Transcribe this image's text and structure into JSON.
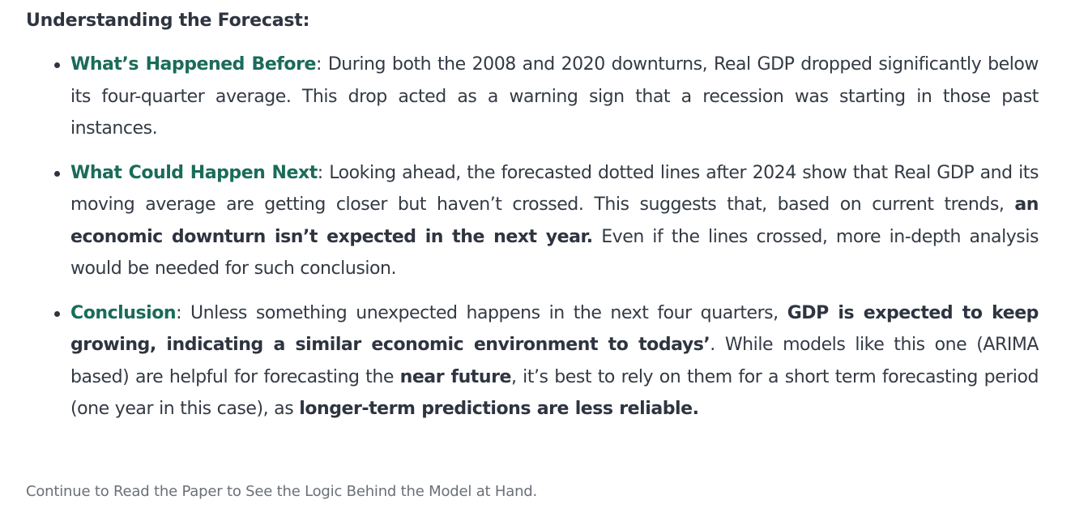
{
  "heading": "Understanding the Forecast:",
  "bullets": [
    {
      "term": "What’s Happened Before",
      "sep": ": ",
      "text": "During both the 2008 and 2020 downturns, Real GDP dropped significantly below its four-quarter average. This drop acted as a warning sign that a recession was starting in those past instances."
    },
    {
      "term": "What Could Happen Next",
      "sep": ": ",
      "text_a": "Looking ahead, the forecasted dotted lines after 2024 show that Real GDP and its moving average are getting closer but haven’t crossed. This suggests that, based on current trends, ",
      "bold_a": "an economic downturn isn’t expected in the next year.",
      "text_b": " Even if the lines crossed, more in-depth analysis would be needed for such conclusion."
    },
    {
      "term": "Conclusion",
      "sep": ": ",
      "text_a": "Unless something unexpected happens in the next four quarters, ",
      "bold_a": "GDP is expected to keep growing, indicating a similar economic environment to todays’",
      "text_b": ". While models like this one (ARIMA based) are helpful for forecasting the ",
      "bold_b": "near future",
      "text_c": ", it’s best to rely on them for a short term forecasting period (one year in this case), as ",
      "bold_c": "longer-term predictions are less reliable."
    }
  ],
  "footer": "Continue to Read the Paper to See the Logic Behind the Model at Hand."
}
